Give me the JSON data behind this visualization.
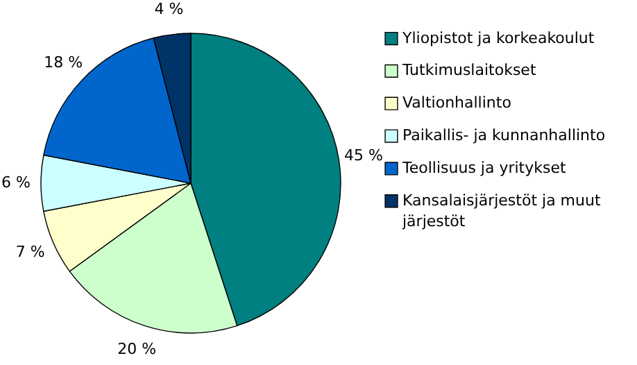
{
  "chart_data": {
    "type": "pie",
    "categories": [
      "Yliopistot ja korkeakoulut",
      "Tutkimuslaitokset",
      "Valtionhallinto",
      "Paikallis- ja kunnanhallinto",
      "Teollisuus ja yritykset",
      "Kansalaisjärjestöt ja muut järjestöt"
    ],
    "values": [
      45,
      20,
      7,
      6,
      18,
      4
    ],
    "colors": [
      "#008080",
      "#ccffcc",
      "#ffffcc",
      "#ccffff",
      "#0066cc",
      "#003366"
    ],
    "value_labels": [
      "45 %",
      "20 %",
      "7 %",
      "6 %",
      "18 %",
      "4 %"
    ],
    "legend": "right"
  }
}
